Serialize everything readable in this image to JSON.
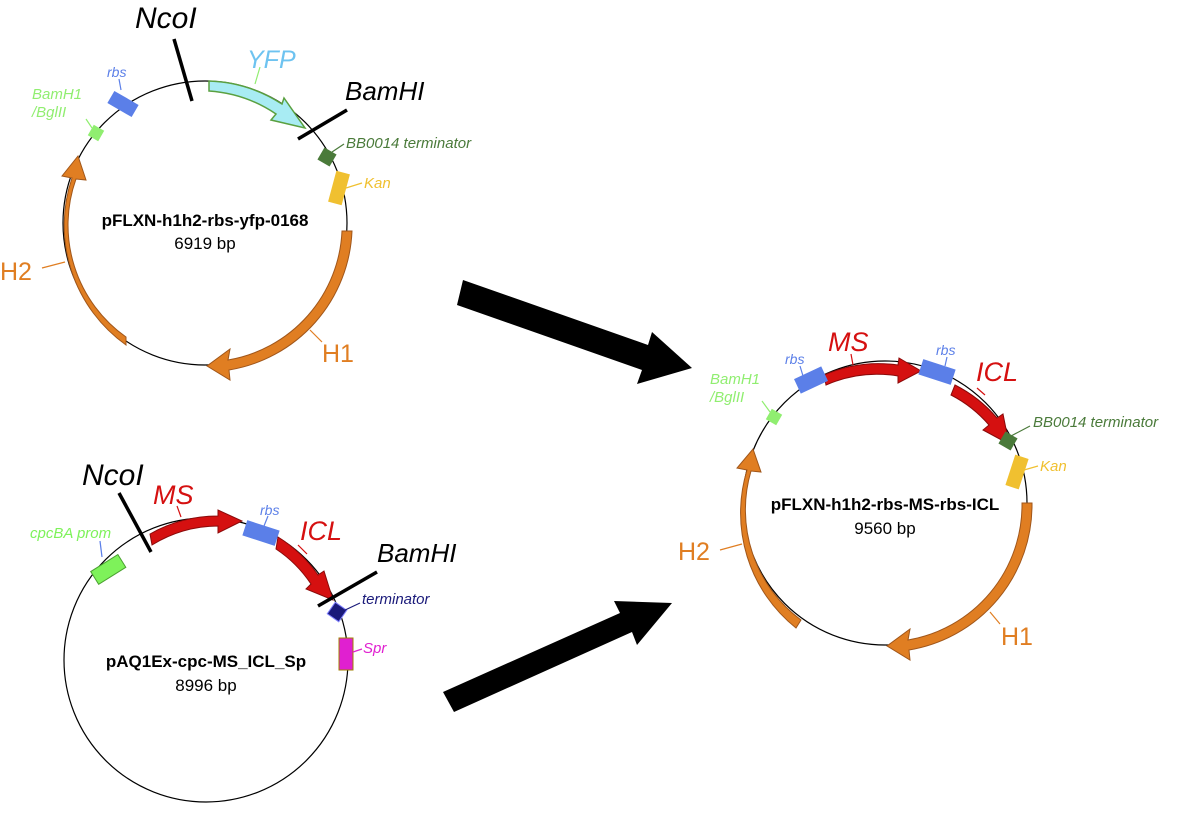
{
  "plasmid_a": {
    "name": "pFLXN-h1h2-rbs-yfp-0168",
    "size": "6919 bp",
    "labels": {
      "ncoi": "NcoI",
      "yfp": "YFP",
      "bamhi": "BamHI",
      "rbs": "rbs",
      "bamh1_line1": "BamH1",
      "bamh1_line2": "/BglII",
      "terminator": "BB0014 terminator",
      "kan": "Kan",
      "h2": "H2",
      "h1": "H1"
    }
  },
  "plasmid_b": {
    "name": "pAQ1Ex-cpc-MS_ICL_Sp",
    "size": "8996 bp",
    "labels": {
      "ncoi": "NcoI",
      "ms": "MS",
      "rbs": "rbs",
      "icl": "ICL",
      "bamhi": "BamHI",
      "cpcba": "cpcBA prom",
      "terminator": "terminator",
      "spr": "Spr"
    }
  },
  "plasmid_c": {
    "name": "pFLXN-h1h2-rbs-MS-rbs-ICL",
    "size": "9560 bp",
    "labels": {
      "rbs1": "rbs",
      "ms": "MS",
      "rbs2": "rbs",
      "icl": "ICL",
      "bamh1_line1": "BamH1",
      "bamh1_line2": "/BglII",
      "terminator": "BB0014 terminator",
      "kan": "Kan",
      "h2": "H2",
      "h1": "H1"
    }
  },
  "colors": {
    "rbs": "#5b7fe8",
    "yfp_fill": "#a8ecf3",
    "yfp_text": "#6ec3f0",
    "bamh1": "#90ee70",
    "terminator": "#4a7a3a",
    "kan": "#f0c030",
    "h_arc": "#e07e22",
    "red_arc": "#d51010",
    "cpcba": "#7ef25a",
    "terminator_b": "#1a1a7a",
    "spr": "#e020d0"
  }
}
